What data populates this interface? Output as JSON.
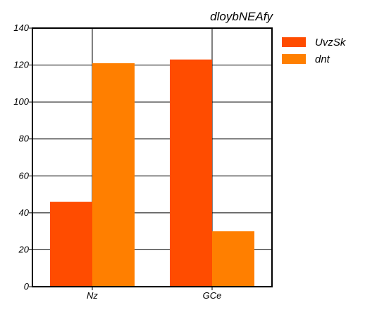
{
  "chart_data": {
    "type": "bar",
    "title": "dloybNEAfy",
    "categories": [
      "Nz",
      "GCe"
    ],
    "series": [
      {
        "name": "UvzSk",
        "color": "#ff4c00",
        "values": [
          46,
          123
        ]
      },
      {
        "name": "dnt",
        "color": "#ff7f00",
        "values": [
          121,
          30
        ]
      }
    ],
    "ylim": [
      0,
      140
    ],
    "yticks": [
      0,
      20,
      40,
      60,
      80,
      100,
      120,
      140
    ],
    "grid": true,
    "legend_position": "right"
  }
}
